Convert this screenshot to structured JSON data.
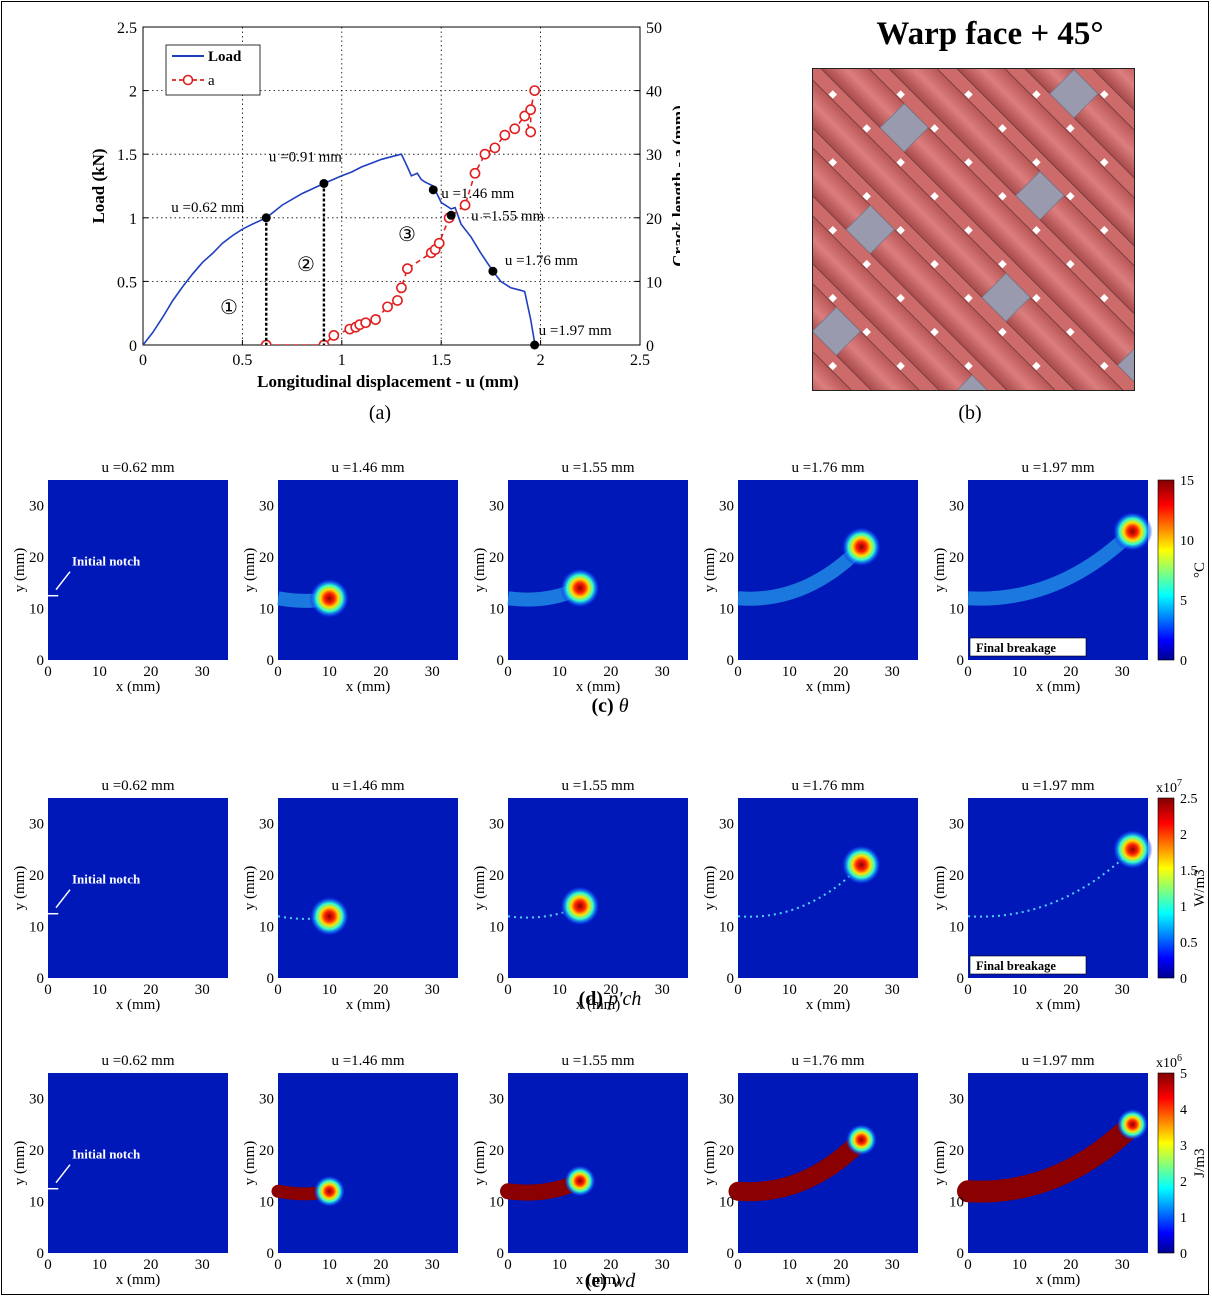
{
  "figure": {
    "caption_a": "(a)",
    "caption_b": "(b)",
    "row_c": {
      "letter": "(c)",
      "symbol": "θ"
    },
    "row_d": {
      "letter": "(d)",
      "symbol": "p′ch"
    },
    "row_e": {
      "letter": "(e)",
      "symbol": "wd"
    }
  },
  "panel_b": {
    "title": "Warp face + 45°",
    "colors": {
      "yarn": "#cd6a6a",
      "grey": "#9a9aae",
      "gap": "#ffffff",
      "shadow": "#6e3a40"
    }
  },
  "chart_data": [
    {
      "type": "line",
      "xlabel": "Longitudinal displacement - u (mm)",
      "ylabel": "Load (kN)",
      "y2label": "Crack length - a (mm)",
      "xlim": [
        0,
        2.5
      ],
      "ylim": [
        0,
        2.5
      ],
      "y2lim": [
        0,
        50
      ],
      "xticks": [
        "0",
        "0.5",
        "1",
        "1.5",
        "2",
        "2.5"
      ],
      "yticks": [
        "0",
        "0.5",
        "1",
        "1.5",
        "2",
        "2.5"
      ],
      "y2ticks": [
        "0",
        "10",
        "20",
        "30",
        "40",
        "50"
      ],
      "grid": true,
      "legend_position": "top-left",
      "series": [
        {
          "name": "Load",
          "axis": "left",
          "color": "#1f3fbf",
          "style": "solid",
          "x": [
            0,
            0.05,
            0.1,
            0.15,
            0.2,
            0.25,
            0.3,
            0.35,
            0.4,
            0.45,
            0.5,
            0.55,
            0.62,
            0.7,
            0.8,
            0.91,
            1.0,
            1.05,
            1.1,
            1.15,
            1.2,
            1.25,
            1.3,
            1.33,
            1.35,
            1.38,
            1.4,
            1.42,
            1.46,
            1.5,
            1.52,
            1.55,
            1.57,
            1.6,
            1.65,
            1.7,
            1.76,
            1.8,
            1.85,
            1.9,
            1.92,
            1.95,
            1.97
          ],
          "y": [
            0,
            0.1,
            0.22,
            0.35,
            0.46,
            0.56,
            0.65,
            0.72,
            0.8,
            0.86,
            0.91,
            0.95,
            1.0,
            1.1,
            1.19,
            1.27,
            1.33,
            1.36,
            1.4,
            1.43,
            1.46,
            1.48,
            1.5,
            1.4,
            1.33,
            1.35,
            1.3,
            1.28,
            1.25,
            1.12,
            1.1,
            1.07,
            1.08,
            0.95,
            0.85,
            0.72,
            0.58,
            0.5,
            0.45,
            0.43,
            0.42,
            0.2,
            0.02
          ]
        },
        {
          "name": "a",
          "axis": "right",
          "color": "#e02020",
          "style": "dashed-circle",
          "x": [
            0.62,
            0.91,
            0.96,
            1.04,
            1.07,
            1.09,
            1.12,
            1.17,
            1.23,
            1.28,
            1.3,
            1.33,
            1.45,
            1.47,
            1.49,
            1.54,
            1.62,
            1.67,
            1.72,
            1.77,
            1.82,
            1.87,
            1.92,
            1.95,
            1.95,
            1.97
          ],
          "y": [
            0,
            0,
            1.5,
            2.5,
            2.8,
            3.2,
            3.5,
            4,
            6,
            7,
            9,
            12,
            14.5,
            15,
            16,
            20,
            22,
            27,
            30,
            31,
            33,
            34,
            36,
            33.5,
            37,
            40
          ]
        }
      ],
      "markers": [
        {
          "x": 0.62,
          "y": 1.0,
          "label": "u =0.62 mm"
        },
        {
          "x": 0.91,
          "y": 1.27,
          "label": "u =0.91 mm"
        },
        {
          "x": 1.46,
          "y": 1.22,
          "label": "u =1.46 mm"
        },
        {
          "x": 1.55,
          "y": 1.02,
          "label": "u =1.55 mm"
        },
        {
          "x": 1.76,
          "y": 0.58,
          "label": "u =1.76 mm"
        },
        {
          "x": 1.97,
          "y": 0.0,
          "label": "u =1.97 mm"
        }
      ],
      "regions": [
        "①",
        "②",
        "③"
      ]
    },
    {
      "type": "heatmap",
      "panels": [
        "u =0.62 mm",
        "u =1.46 mm",
        "u =1.55 mm",
        "u =1.76 mm",
        "u =1.97 mm"
      ],
      "xlabel": "x (mm)",
      "ylabel": "y (mm)",
      "xticks": [
        "0",
        "10",
        "20",
        "30"
      ],
      "yticks": [
        "0",
        "10",
        "20",
        "30"
      ],
      "annotations": {
        "notch": "Initial notch",
        "breakage": "Final breakage"
      },
      "rows": [
        {
          "quantity": "θ",
          "unit": "°C",
          "scale_exp": "",
          "cbar_ticks": [
            "0",
            "5",
            "10",
            "15"
          ],
          "cbar_max": 15
        },
        {
          "quantity": "p′ch",
          "unit": "W/m3",
          "scale_exp": "x10",
          "scale_pow": "7",
          "cbar_ticks": [
            "0",
            "0.5",
            "1",
            "1.5",
            "2",
            "2.5"
          ],
          "cbar_max": 2.5
        },
        {
          "quantity": "wd",
          "unit": "J/m3",
          "scale_exp": "x10",
          "scale_pow": "6",
          "cbar_ticks": [
            "0",
            "1",
            "2",
            "3",
            "4",
            "5"
          ],
          "cbar_max": 5
        }
      ],
      "crack_tip_x": [
        2,
        10,
        14,
        24,
        32
      ],
      "crack_tip_y": [
        12.5,
        12,
        14,
        22,
        25
      ]
    }
  ]
}
